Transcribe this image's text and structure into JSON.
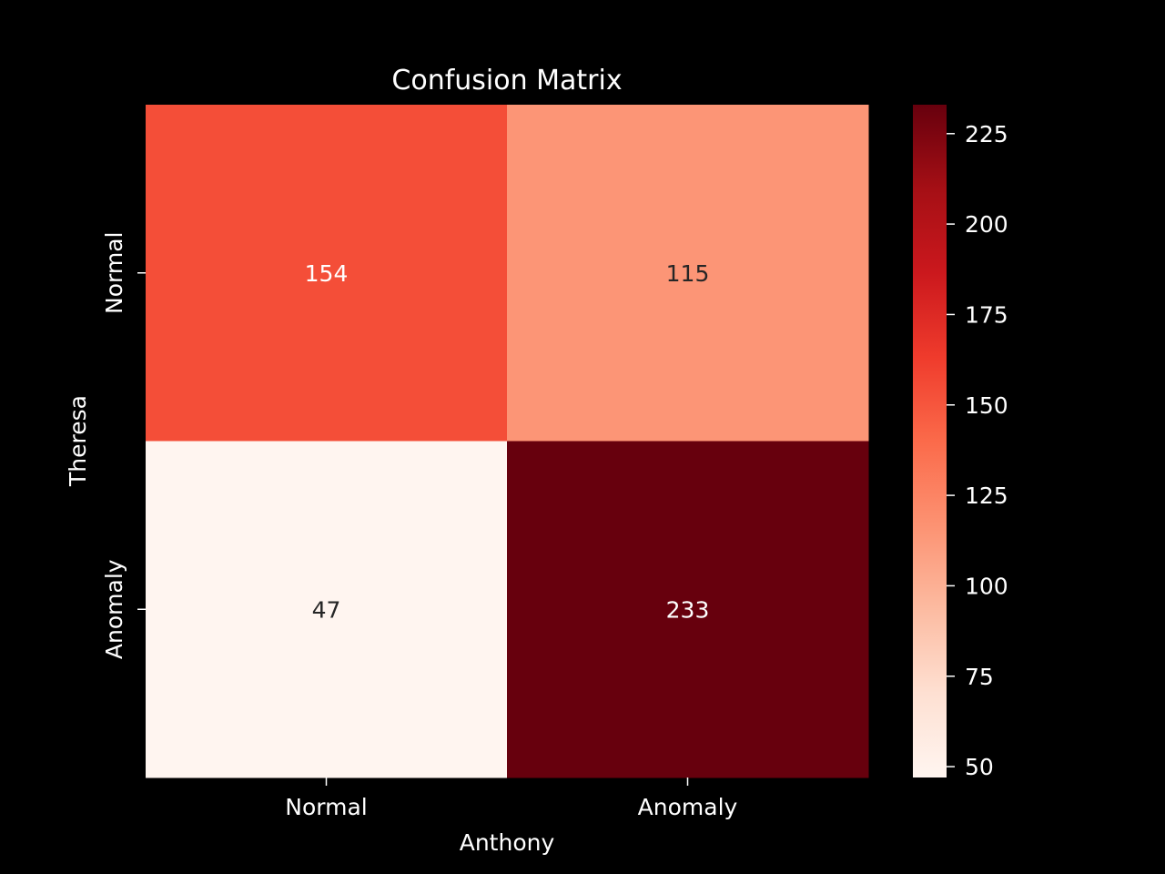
{
  "chart_data": {
    "type": "heatmap",
    "title": "Confusion Matrix",
    "xlabel": "Anthony",
    "ylabel": "Theresa",
    "x_categories": [
      "Normal",
      "Anomaly"
    ],
    "y_categories": [
      "Normal",
      "Anomaly"
    ],
    "values": [
      [
        154,
        115
      ],
      [
        47,
        233
      ]
    ],
    "colormap": "Reds",
    "colorbar": {
      "range": [
        47,
        233
      ],
      "ticks": [
        50,
        75,
        100,
        125,
        150,
        175,
        200,
        225
      ]
    },
    "background": "#000000",
    "text_color": "#ffffff"
  }
}
